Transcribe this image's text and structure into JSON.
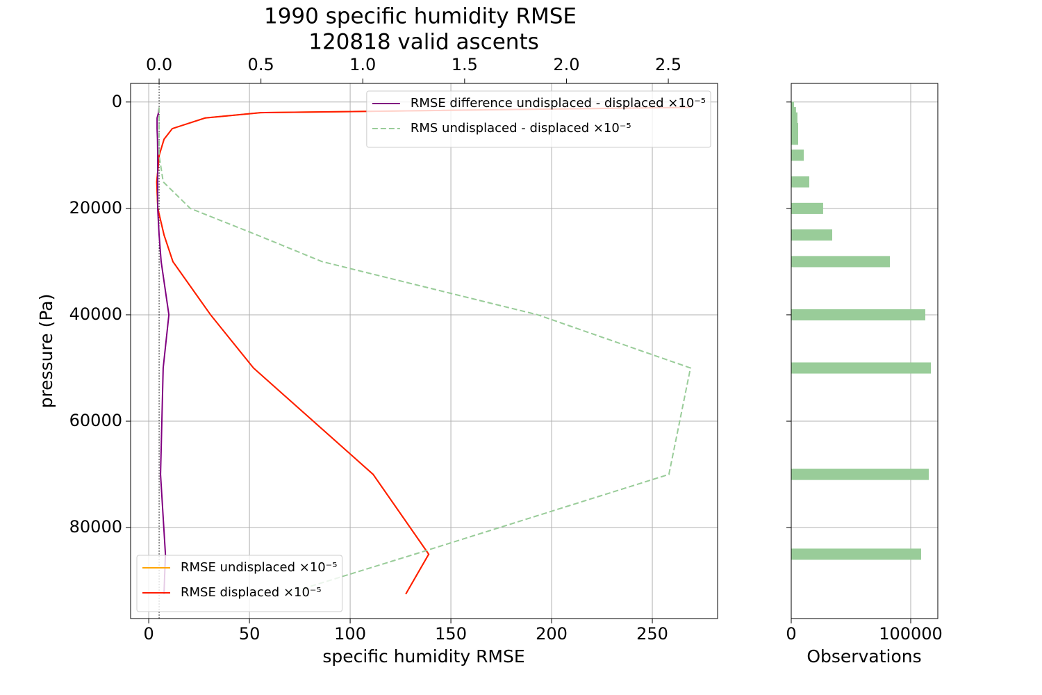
{
  "chart_data": [
    {
      "type": "line",
      "title": [
        "1990 specific humidity RMSE",
        "120818 valid ascents"
      ],
      "xlabel": "specific humidity RMSE",
      "ylabel": "pressure (Pa)",
      "y": [
        1000,
        2000,
        3000,
        5000,
        7000,
        10000,
        15000,
        20000,
        25000,
        30000,
        40000,
        50000,
        70000,
        85000,
        92500
      ],
      "xlim": [
        -9,
        282.4
      ],
      "xticks": [
        0,
        50,
        100,
        150,
        200,
        250
      ],
      "x2lim": [
        -0.14,
        2.742
      ],
      "x2ticks": [
        {
          "value": 0,
          "label": "0.0"
        },
        {
          "value": 0.5,
          "label": "0.5"
        },
        {
          "value": 1,
          "label": "1.0"
        },
        {
          "value": 1.5,
          "label": "1.5"
        },
        {
          "value": 2,
          "label": "2.0"
        },
        {
          "value": 2.5,
          "label": "2.5"
        }
      ],
      "x2_zero_line": true,
      "ylim": [
        97100,
        -3500
      ],
      "yticks": [
        0,
        20000,
        40000,
        60000,
        80000
      ],
      "grid": true,
      "series": [
        {
          "name": "RMSE undisplaced ×10⁻⁵",
          "color": "#ffa500",
          "axis": "x",
          "style": "solid",
          "legend": "lower left",
          "values": [
            269,
            55.5,
            28,
            11.7,
            7.6,
            5.2,
            4,
            4.5,
            7.6,
            12,
            30.7,
            52,
            111.4,
            139,
            127.6
          ]
        },
        {
          "name": "RMSE displaced ×10⁻⁵",
          "color": "#ff1a00",
          "axis": "x",
          "style": "solid",
          "legend": "lower left",
          "values": [
            269,
            55.5,
            28,
            11.7,
            7.6,
            5.2,
            4,
            4.5,
            7.6,
            12,
            30.7,
            52,
            111.4,
            139,
            127.6
          ]
        },
        {
          "name": "RMSE difference undisplaced - displaced ×10⁻⁵",
          "color": "#800080",
          "axis": "x2",
          "style": "solid",
          "legend": "upper right",
          "values": [
            0.0,
            -0.003,
            -0.01,
            -0.01,
            -0.008,
            -0.007,
            -0.007,
            -0.007,
            0.0,
            0.01,
            0.048,
            0.02,
            0.007,
            0.031,
            0.024
          ]
        },
        {
          "name": "RMS undisplaced - displaced ×10⁻⁵",
          "color": "#99cc99",
          "axis": "x2",
          "style": "dashed",
          "legend": "upper right",
          "values": [
            0.0,
            0.0,
            0.0,
            0.0,
            0.0,
            0.0,
            0.02,
            0.153,
            0.481,
            0.8,
            1.859,
            2.609,
            2.503,
            1.255,
            0.62
          ]
        }
      ]
    },
    {
      "type": "barh",
      "xlabel": "Observations",
      "y": [
        1000,
        2000,
        3000,
        5000,
        7000,
        10000,
        15000,
        20000,
        25000,
        30000,
        40000,
        50000,
        70000,
        85000,
        92500
      ],
      "values": [
        2300,
        4000,
        5200,
        5800,
        5800,
        10500,
        15100,
        26700,
        34300,
        82600,
        112200,
        116900,
        115100,
        108700,
        0
      ],
      "color": "#99cc99",
      "xlim": [
        0,
        122670
      ],
      "xticks": [
        0,
        100000
      ],
      "ylim": [
        97100,
        -3500
      ],
      "yticks": [
        0,
        20000,
        40000,
        60000,
        80000
      ],
      "ytick_labels": false,
      "grid": true
    }
  ]
}
